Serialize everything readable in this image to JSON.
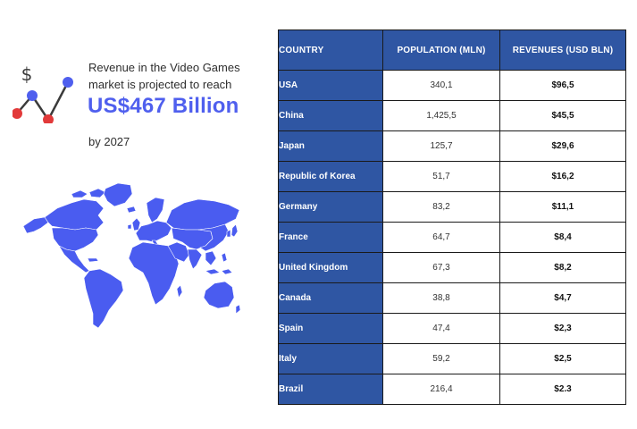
{
  "colors": {
    "accent_blue": "#4f5fee",
    "table_blue": "#2f56a3",
    "icon_red": "#e23a3a",
    "icon_dark": "#3b3b3b",
    "map_blue": "#4a5cf0"
  },
  "headline": {
    "line1": "Revenue in the Video Games",
    "line2": "market is projected to reach",
    "amount": "US$467 Billion",
    "year_text": "by 2027"
  },
  "icons": {
    "trend": "trend-chart-icon",
    "dollar": "dollar-sign-icon",
    "map": "world-map-icon"
  },
  "table": {
    "headers": [
      "COUNTRY",
      "POPULATION (MLN)",
      "REVENUES (USD BLN)"
    ],
    "rows": [
      {
        "country": "USA",
        "population": "340,1",
        "revenue": "$96,5"
      },
      {
        "country": "China",
        "population": "1,425,5",
        "revenue": "$45,5"
      },
      {
        "country": "Japan",
        "population": "125,7",
        "revenue": "$29,6"
      },
      {
        "country": "Republic of Korea",
        "population": "51,7",
        "revenue": "$16,2"
      },
      {
        "country": "Germany",
        "population": "83,2",
        "revenue": "$11,1"
      },
      {
        "country": "France",
        "population": "64,7",
        "revenue": "$8,4"
      },
      {
        "country": "United Kingdom",
        "population": "67,3",
        "revenue": "$8,2"
      },
      {
        "country": "Canada",
        "population": "38,8",
        "revenue": "$4,7"
      },
      {
        "country": "Spain",
        "population": "47,4",
        "revenue": "$2,3"
      },
      {
        "country": "Italy",
        "population": "59,2",
        "revenue": "$2,5"
      },
      {
        "country": "Brazil",
        "population": "216,4",
        "revenue": "$2.3"
      }
    ]
  }
}
